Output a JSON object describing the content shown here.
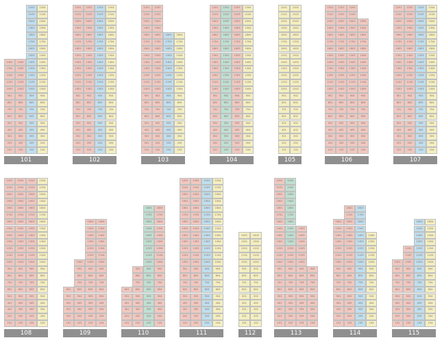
{
  "colors": {
    "pink": "#f0c8c0",
    "yellow": "#f3efc0",
    "blue": "#bfdfee",
    "green": "#bfe0d2",
    "label_bg": "#8f8f8f",
    "label_text": "#ffffff"
  },
  "buildings": [
    {
      "label": "101",
      "columns": [
        {
          "floors": 14,
          "segments": [
            {
              "from": 1,
              "to": 14,
              "color": "pink"
            }
          ]
        },
        {
          "floors": 14,
          "segments": [
            {
              "from": 1,
              "to": 14,
              "color": "pink"
            }
          ]
        },
        {
          "floors": 22,
          "segments": [
            {
              "from": 1,
              "to": 22,
              "color": "blue"
            }
          ]
        },
        {
          "floors": 22,
          "segments": [
            {
              "from": 1,
              "to": 22,
              "color": "yellow"
            }
          ]
        }
      ]
    },
    {
      "label": "102",
      "columns": [
        {
          "floors": 22,
          "segments": [
            {
              "from": 1,
              "to": 22,
              "color": "pink"
            }
          ]
        },
        {
          "floors": 22,
          "segments": [
            {
              "from": 1,
              "to": 22,
              "color": "pink"
            }
          ]
        },
        {
          "floors": 22,
          "segments": [
            {
              "from": 1,
              "to": 22,
              "color": "blue"
            }
          ]
        },
        {
          "floors": 22,
          "segments": [
            {
              "from": 1,
              "to": 22,
              "color": "yellow"
            }
          ]
        }
      ]
    },
    {
      "label": "103",
      "columns": [
        {
          "floors": 22,
          "segments": [
            {
              "from": 1,
              "to": 22,
              "color": "pink"
            }
          ]
        },
        {
          "floors": 22,
          "segments": [
            {
              "from": 1,
              "to": 22,
              "color": "pink"
            }
          ]
        },
        {
          "floors": 18,
          "segments": [
            {
              "from": 1,
              "to": 18,
              "color": "blue"
            }
          ]
        },
        {
          "floors": 18,
          "segments": [
            {
              "from": 1,
              "to": 18,
              "color": "yellow"
            }
          ]
        }
      ]
    },
    {
      "label": "104",
      "columns": [
        {
          "floors": 22,
          "segments": [
            {
              "from": 1,
              "to": 22,
              "color": "pink"
            }
          ]
        },
        {
          "floors": 22,
          "segments": [
            {
              "from": 1,
              "to": 22,
              "color": "green"
            }
          ]
        },
        {
          "floors": 22,
          "segments": [
            {
              "from": 1,
              "to": 22,
              "color": "pink"
            }
          ]
        },
        {
          "floors": 22,
          "segments": [
            {
              "from": 1,
              "to": 22,
              "color": "yellow"
            }
          ]
        }
      ]
    },
    {
      "label": "105",
      "columns": [
        {
          "floors": 22,
          "segments": [
            {
              "from": 1,
              "to": 22,
              "color": "yellow"
            }
          ]
        },
        {
          "floors": 22,
          "segments": [
            {
              "from": 1,
              "to": 22,
              "color": "yellow"
            }
          ]
        }
      ]
    },
    {
      "label": "106",
      "columns": [
        {
          "floors": 22,
          "segments": [
            {
              "from": 1,
              "to": 22,
              "color": "pink"
            }
          ]
        },
        {
          "floors": 22,
          "segments": [
            {
              "from": 1,
              "to": 22,
              "color": "pink"
            }
          ]
        },
        {
          "floors": 22,
          "segments": [
            {
              "from": 1,
              "to": 22,
              "color": "pink"
            }
          ]
        },
        {
          "floors": 20,
          "segments": [
            {
              "from": 1,
              "to": 20,
              "color": "pink"
            }
          ]
        }
      ]
    },
    {
      "label": "107",
      "columns": [
        {
          "floors": 22,
          "segments": [
            {
              "from": 1,
              "to": 22,
              "color": "pink"
            }
          ]
        },
        {
          "floors": 22,
          "segments": [
            {
              "from": 1,
              "to": 22,
              "color": "pink"
            }
          ]
        },
        {
          "floors": 22,
          "segments": [
            {
              "from": 1,
              "to": 22,
              "color": "blue"
            }
          ]
        },
        {
          "floors": 22,
          "segments": [
            {
              "from": 1,
              "to": 22,
              "color": "yellow"
            }
          ]
        }
      ]
    },
    {
      "label": "108",
      "columns": [
        {
          "floors": 22,
          "segments": [
            {
              "from": 1,
              "to": 22,
              "color": "pink"
            }
          ]
        },
        {
          "floors": 22,
          "segments": [
            {
              "from": 1,
              "to": 22,
              "color": "pink"
            }
          ]
        },
        {
          "floors": 22,
          "segments": [
            {
              "from": 1,
              "to": 22,
              "color": "pink"
            }
          ]
        },
        {
          "floors": 22,
          "segments": [
            {
              "from": 1,
              "to": 22,
              "color": "yellow"
            }
          ]
        }
      ]
    },
    {
      "label": "109",
      "columns": [
        {
          "floors": 6,
          "segments": [
            {
              "from": 1,
              "to": 6,
              "color": "pink"
            }
          ]
        },
        {
          "floors": 10,
          "segments": [
            {
              "from": 1,
              "to": 10,
              "color": "pink"
            }
          ]
        },
        {
          "floors": 16,
          "segments": [
            {
              "from": 1,
              "to": 16,
              "color": "pink"
            }
          ]
        },
        {
          "floors": 16,
          "segments": [
            {
              "from": 1,
              "to": 16,
              "color": "pink"
            }
          ]
        }
      ]
    },
    {
      "label": "110",
      "columns": [
        {
          "floors": 6,
          "segments": [
            {
              "from": 1,
              "to": 6,
              "color": "pink"
            }
          ]
        },
        {
          "floors": 9,
          "segments": [
            {
              "from": 1,
              "to": 9,
              "color": "pink"
            }
          ]
        },
        {
          "floors": 18,
          "segments": [
            {
              "from": 1,
              "to": 18,
              "color": "green"
            }
          ]
        },
        {
          "floors": 18,
          "segments": [
            {
              "from": 1,
              "to": 18,
              "color": "pink"
            }
          ]
        }
      ]
    },
    {
      "label": "111",
      "columns": [
        {
          "floors": 22,
          "segments": [
            {
              "from": 1,
              "to": 22,
              "color": "pink"
            }
          ]
        },
        {
          "floors": 22,
          "segments": [
            {
              "from": 1,
              "to": 22,
              "color": "pink"
            }
          ]
        },
        {
          "floors": 22,
          "segments": [
            {
              "from": 1,
              "to": 22,
              "color": "blue"
            }
          ]
        },
        {
          "floors": 22,
          "segments": [
            {
              "from": 1,
              "to": 22,
              "color": "yellow"
            }
          ]
        }
      ]
    },
    {
      "label": "112",
      "columns": [
        {
          "floors": 14,
          "segments": [
            {
              "from": 1,
              "to": 14,
              "color": "yellow"
            }
          ]
        },
        {
          "floors": 14,
          "segments": [
            {
              "from": 1,
              "to": 14,
              "color": "yellow"
            }
          ]
        }
      ]
    },
    {
      "label": "113",
      "columns": [
        {
          "floors": 22,
          "segments": [
            {
              "from": 1,
              "to": 22,
              "color": "pink"
            }
          ]
        },
        {
          "floors": 22,
          "segments": [
            {
              "from": 1,
              "to": 12,
              "color": "pink"
            },
            {
              "from": 13,
              "to": 22,
              "color": "green"
            }
          ]
        },
        {
          "floors": 15,
          "segments": [
            {
              "from": 1,
              "to": 15,
              "color": "pink"
            }
          ]
        },
        {
          "floors": 9,
          "segments": [
            {
              "from": 1,
              "to": 9,
              "color": "pink"
            }
          ]
        }
      ]
    },
    {
      "label": "114",
      "columns": [
        {
          "floors": 16,
          "segments": [
            {
              "from": 1,
              "to": 16,
              "color": "pink"
            }
          ]
        },
        {
          "floors": 18,
          "segments": [
            {
              "from": 1,
              "to": 18,
              "color": "pink"
            }
          ]
        },
        {
          "floors": 18,
          "segments": [
            {
              "from": 1,
              "to": 18,
              "color": "blue"
            }
          ]
        },
        {
          "floors": 14,
          "segments": [
            {
              "from": 1,
              "to": 14,
              "color": "yellow"
            }
          ]
        }
      ]
    },
    {
      "label": "115",
      "columns": [
        {
          "floors": 10,
          "segments": [
            {
              "from": 1,
              "to": 10,
              "color": "pink"
            }
          ]
        },
        {
          "floors": 12,
          "segments": [
            {
              "from": 1,
              "to": 12,
              "color": "pink"
            }
          ]
        },
        {
          "floors": 16,
          "segments": [
            {
              "from": 1,
              "to": 16,
              "color": "blue"
            }
          ]
        },
        {
          "floors": 16,
          "segments": [
            {
              "from": 1,
              "to": 16,
              "color": "yellow"
            }
          ]
        }
      ]
    }
  ]
}
